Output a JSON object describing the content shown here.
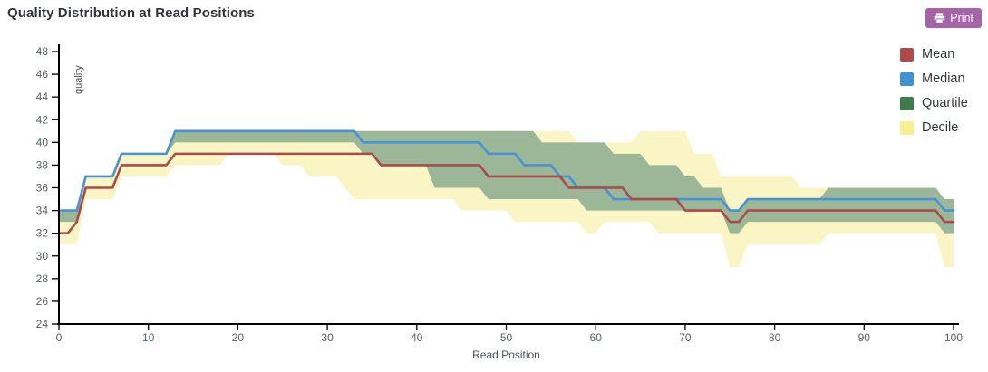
{
  "header": {
    "title": "Quality Distribution at Read Positions",
    "print_label": "Print"
  },
  "colors": {
    "print_button": "#a663a8",
    "axis": "#000000",
    "tick_label": "#566069",
    "axis_title": "#4a5057",
    "mean_line": "#aa4a4b",
    "median_line": "#4a92d5",
    "quartile_band": "#9cb797",
    "decile_band": "#faf5c4"
  },
  "legend": {
    "items": [
      {
        "label": "Mean",
        "color": "#b04a4b"
      },
      {
        "label": "Median",
        "color": "#4292d2"
      },
      {
        "label": "Quartile",
        "color": "#3e7a4a"
      },
      {
        "label": "Decile",
        "color": "#f9ef90"
      }
    ]
  },
  "chart_data": {
    "type": "line",
    "title": "Quality Distribution at Read Positions",
    "xlabel": "Read Position",
    "ylabel": "quality",
    "xlim": [
      0,
      100
    ],
    "ylim": [
      24,
      48
    ],
    "x_ticks": [
      0,
      10,
      20,
      30,
      40,
      50,
      60,
      70,
      80,
      90,
      100
    ],
    "y_ticks": [
      24,
      26,
      28,
      30,
      32,
      34,
      36,
      38,
      40,
      42,
      44,
      46,
      48
    ],
    "grid": false,
    "legend_position": "top-right",
    "x": [
      0,
      1,
      2,
      3,
      4,
      5,
      6,
      7,
      8,
      9,
      10,
      11,
      12,
      13,
      14,
      15,
      16,
      17,
      18,
      19,
      20,
      21,
      22,
      23,
      24,
      25,
      26,
      27,
      28,
      29,
      30,
      31,
      32,
      33,
      34,
      35,
      36,
      37,
      38,
      39,
      40,
      41,
      42,
      43,
      44,
      45,
      46,
      47,
      48,
      49,
      50,
      51,
      52,
      53,
      54,
      55,
      56,
      57,
      58,
      59,
      60,
      61,
      62,
      63,
      64,
      65,
      66,
      67,
      68,
      69,
      70,
      71,
      72,
      73,
      74,
      75,
      76,
      77,
      78,
      79,
      80,
      81,
      82,
      83,
      84,
      85,
      86,
      87,
      88,
      89,
      90,
      91,
      92,
      93,
      94,
      95,
      96,
      97,
      98,
      99,
      100
    ],
    "series": [
      {
        "name": "Decile",
        "type": "band",
        "color": "#faf5c4",
        "upper": [
          34,
          34,
          34,
          37,
          37,
          37,
          37,
          39,
          39,
          39,
          39,
          39,
          39,
          40,
          40,
          40,
          40,
          40,
          40,
          40,
          40,
          40,
          40,
          40,
          40,
          40,
          40,
          40,
          41,
          41,
          41,
          41,
          41,
          41,
          41,
          41,
          41,
          41,
          41,
          41,
          41,
          41,
          41,
          41,
          41,
          41,
          41,
          41,
          41,
          41,
          41,
          41,
          41,
          41,
          41,
          41,
          41,
          41,
          40,
          40,
          40,
          40,
          40,
          40,
          40,
          41,
          41,
          41,
          41,
          41,
          41,
          39,
          39,
          39,
          37,
          37,
          37,
          37,
          37,
          37,
          37,
          37,
          37,
          36,
          36,
          36,
          36,
          36,
          36,
          36,
          36,
          36,
          36,
          36,
          36,
          36,
          36,
          36,
          36,
          35,
          35
        ],
        "lower": [
          31,
          31,
          31,
          35,
          35,
          35,
          35,
          37,
          37,
          37,
          37,
          37,
          37,
          38,
          38,
          38,
          38,
          38,
          38,
          39,
          39,
          39,
          39,
          39,
          39,
          38,
          38,
          38,
          37,
          37,
          37,
          37,
          36,
          35,
          35,
          35,
          35,
          35,
          35,
          35,
          35,
          35,
          35,
          35,
          35,
          34,
          34,
          34,
          34,
          34,
          34,
          33,
          33,
          33,
          33,
          33,
          33,
          33,
          33,
          32,
          32,
          33,
          33,
          33,
          33,
          33,
          33,
          32,
          32,
          32,
          32,
          32,
          32,
          32,
          32,
          29,
          29,
          31,
          31,
          31,
          31,
          31,
          31,
          31,
          31,
          31,
          32,
          32,
          32,
          32,
          32,
          32,
          32,
          32,
          32,
          32,
          32,
          32,
          32,
          29,
          29
        ]
      },
      {
        "name": "Quartile",
        "type": "band",
        "color": "#9cb797",
        "upper": [
          34,
          34,
          34,
          37,
          37,
          37,
          37,
          39,
          39,
          39,
          39,
          39,
          39,
          41,
          41,
          41,
          41,
          41,
          41,
          41,
          41,
          41,
          41,
          41,
          41,
          41,
          41,
          41,
          41,
          41,
          41,
          41,
          41,
          41,
          41,
          41,
          41,
          41,
          41,
          41,
          41,
          41,
          41,
          41,
          41,
          41,
          41,
          41,
          41,
          41,
          41,
          41,
          41,
          41,
          40,
          40,
          40,
          40,
          40,
          40,
          40,
          40,
          39,
          39,
          39,
          39,
          38,
          38,
          38,
          38,
          37,
          37,
          36,
          36,
          36,
          34,
          34,
          35,
          35,
          35,
          35,
          35,
          35,
          35,
          35,
          35,
          36,
          36,
          36,
          36,
          36,
          36,
          36,
          36,
          36,
          36,
          36,
          36,
          36,
          35,
          35
        ],
        "lower": [
          33,
          33,
          33,
          37,
          37,
          37,
          37,
          39,
          39,
          39,
          39,
          39,
          39,
          40,
          40,
          40,
          40,
          40,
          40,
          40,
          40,
          40,
          40,
          40,
          40,
          40,
          40,
          40,
          40,
          40,
          40,
          40,
          40,
          40,
          39,
          39,
          38,
          38,
          38,
          38,
          38,
          38,
          36,
          36,
          36,
          36,
          36,
          36,
          35,
          35,
          35,
          35,
          35,
          35,
          35,
          35,
          35,
          35,
          35,
          34,
          34,
          34,
          34,
          34,
          34,
          34,
          34,
          34,
          34,
          34,
          34,
          34,
          34,
          34,
          34,
          32,
          32,
          33,
          33,
          33,
          33,
          33,
          33,
          33,
          33,
          33,
          33,
          33,
          33,
          33,
          33,
          33,
          33,
          33,
          33,
          33,
          33,
          33,
          33,
          32,
          32
        ]
      },
      {
        "name": "Median",
        "type": "line",
        "color": "#4a92d5",
        "values": [
          34,
          34,
          34,
          37,
          37,
          37,
          37,
          39,
          39,
          39,
          39,
          39,
          39,
          41,
          41,
          41,
          41,
          41,
          41,
          41,
          41,
          41,
          41,
          41,
          41,
          41,
          41,
          41,
          41,
          41,
          41,
          41,
          41,
          41,
          40,
          40,
          40,
          40,
          40,
          40,
          40,
          40,
          40,
          40,
          40,
          40,
          40,
          40,
          39,
          39,
          39,
          39,
          38,
          38,
          38,
          38,
          37,
          37,
          36,
          36,
          36,
          36,
          35,
          35,
          35,
          35,
          35,
          35,
          35,
          35,
          35,
          35,
          35,
          35,
          35,
          34,
          34,
          35,
          35,
          35,
          35,
          35,
          35,
          35,
          35,
          35,
          35,
          35,
          35,
          35,
          35,
          35,
          35,
          35,
          35,
          35,
          35,
          35,
          35,
          34,
          34
        ]
      },
      {
        "name": "Mean",
        "type": "line",
        "color": "#aa4a4b",
        "values": [
          32,
          32,
          33,
          36,
          36,
          36,
          36,
          38,
          38,
          38,
          38,
          38,
          38,
          39,
          39,
          39,
          39,
          39,
          39,
          39,
          39,
          39,
          39,
          39,
          39,
          39,
          39,
          39,
          39,
          39,
          39,
          39,
          39,
          39,
          39,
          39,
          38,
          38,
          38,
          38,
          38,
          38,
          38,
          38,
          38,
          38,
          38,
          38,
          37,
          37,
          37,
          37,
          37,
          37,
          37,
          37,
          37,
          36,
          36,
          36,
          36,
          36,
          36,
          36,
          35,
          35,
          35,
          35,
          35,
          35,
          34,
          34,
          34,
          34,
          34,
          33,
          33,
          34,
          34,
          34,
          34,
          34,
          34,
          34,
          34,
          34,
          34,
          34,
          34,
          34,
          34,
          34,
          34,
          34,
          34,
          34,
          34,
          34,
          34,
          33,
          33
        ]
      }
    ]
  }
}
